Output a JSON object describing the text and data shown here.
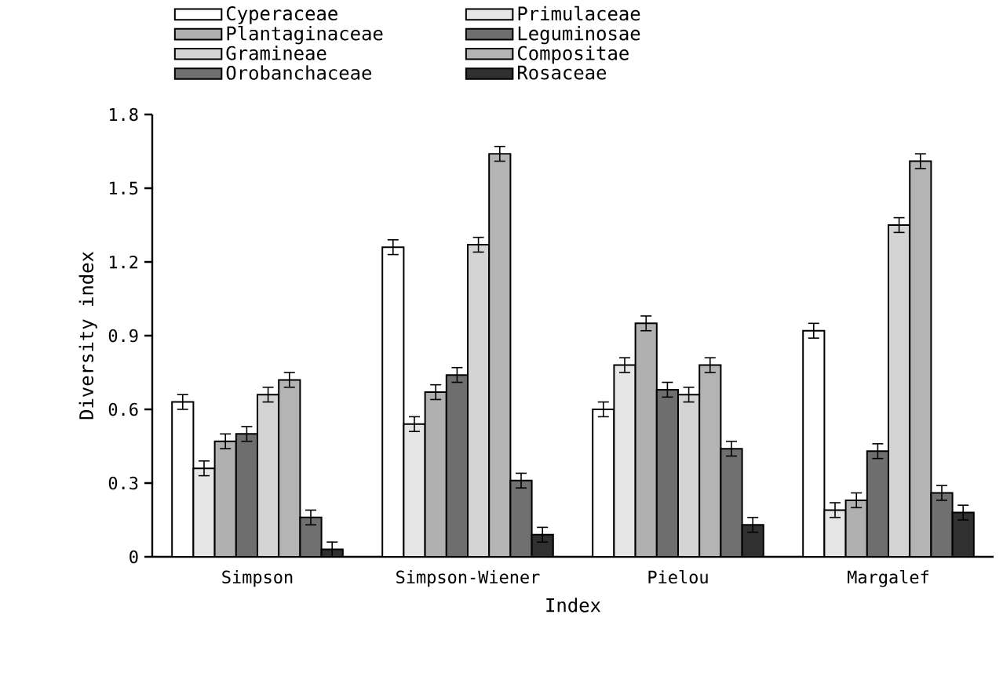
{
  "chart_data": {
    "type": "bar",
    "xlabel": "Index",
    "ylabel": "Diversity index",
    "categories": [
      "Simpson",
      "Simpson-Wiener",
      "Pielou",
      "Margalef"
    ],
    "ylim": [
      0,
      1.8
    ],
    "yticks": [
      0,
      0.3,
      0.6,
      0.9,
      1.2,
      1.5,
      1.8
    ],
    "grid": false,
    "legend": "top",
    "series": [
      {
        "name": "Cyperaceae",
        "color": "#ffffff",
        "values": [
          0.63,
          1.26,
          0.6,
          0.92
        ],
        "errors": [
          0.03,
          0.03,
          0.03,
          0.03
        ]
      },
      {
        "name": "Primulaceae",
        "color": "#e6e6e6",
        "values": [
          0.36,
          0.54,
          0.78,
          0.19
        ],
        "errors": [
          0.03,
          0.03,
          0.03,
          0.03
        ]
      },
      {
        "name": "Plantaginaceae",
        "color": "#b0b0b0",
        "values": [
          0.47,
          0.67,
          0.95,
          0.23
        ],
        "errors": [
          0.03,
          0.03,
          0.03,
          0.03
        ]
      },
      {
        "name": "Leguminosae",
        "color": "#6e6e6e",
        "values": [
          0.5,
          0.74,
          0.68,
          0.43
        ],
        "errors": [
          0.03,
          0.03,
          0.03,
          0.03
        ]
      },
      {
        "name": "Gramineae",
        "color": "#d4d4d4",
        "values": [
          0.66,
          1.27,
          0.66,
          1.35
        ],
        "errors": [
          0.03,
          0.03,
          0.03,
          0.03
        ]
      },
      {
        "name": "Compositae",
        "color": "#b4b4b4",
        "values": [
          0.72,
          1.64,
          0.78,
          1.61
        ],
        "errors": [
          0.03,
          0.03,
          0.03,
          0.03
        ]
      },
      {
        "name": "Orobanchaceae",
        "color": "#707070",
        "values": [
          0.16,
          0.31,
          0.44,
          0.26
        ],
        "errors": [
          0.03,
          0.03,
          0.03,
          0.03
        ]
      },
      {
        "name": "Rosaceae",
        "color": "#303030",
        "values": [
          0.03,
          0.09,
          0.13,
          0.18
        ],
        "errors": [
          0.03,
          0.03,
          0.03,
          0.03
        ]
      }
    ]
  }
}
